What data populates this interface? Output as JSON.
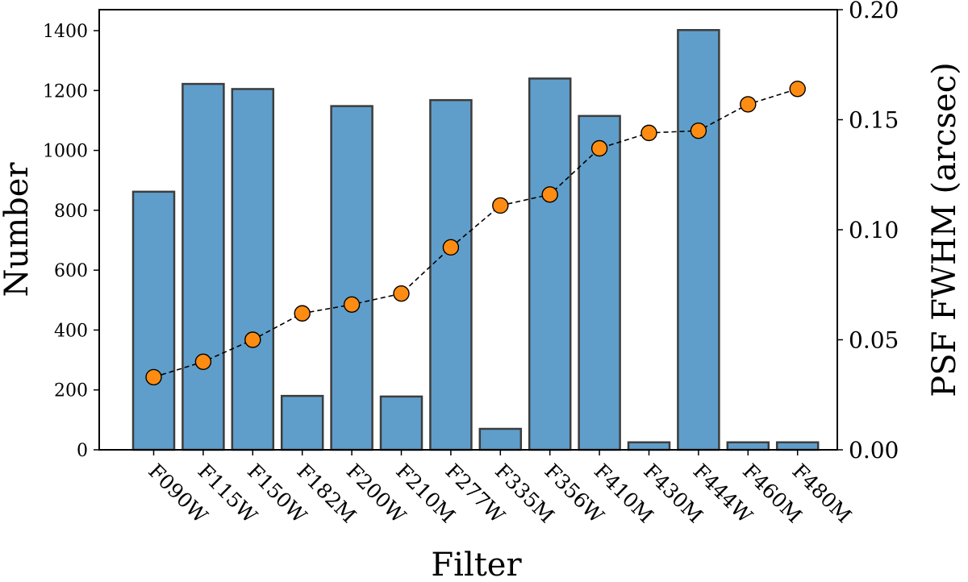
{
  "chart_data": {
    "type": "bar",
    "xlabel": "Filter",
    "ylabel": "Number",
    "y2label": "PSF FWHM (arcsec)",
    "categories": [
      "F090W",
      "F115W",
      "F150W",
      "F182M",
      "F200W",
      "F210M",
      "F277W",
      "F335M",
      "F356W",
      "F410M",
      "F430M",
      "F444W",
      "F460M",
      "F480M"
    ],
    "series": [
      {
        "type": "bar",
        "axis": "left",
        "color": "#5f9ecb",
        "values": [
          862,
          1222,
          1205,
          180,
          1148,
          178,
          1168,
          70,
          1240,
          1115,
          25,
          1402,
          25,
          25
        ]
      },
      {
        "type": "line",
        "axis": "right",
        "color": "#ff8c12",
        "line_style": "dashed",
        "marker": "circle",
        "values": [
          0.033,
          0.04,
          0.05,
          0.062,
          0.066,
          0.071,
          0.092,
          0.111,
          0.116,
          0.137,
          0.144,
          0.145,
          0.157,
          0.164
        ]
      }
    ],
    "ylim": [
      0,
      1470
    ],
    "y2lim": [
      0,
      0.2
    ],
    "yticks": [
      0,
      200,
      400,
      600,
      800,
      1000,
      1200,
      1400
    ],
    "y2ticks": [
      "0.00",
      "0.05",
      "0.10",
      "0.15",
      "0.20"
    ],
    "grid": false
  }
}
